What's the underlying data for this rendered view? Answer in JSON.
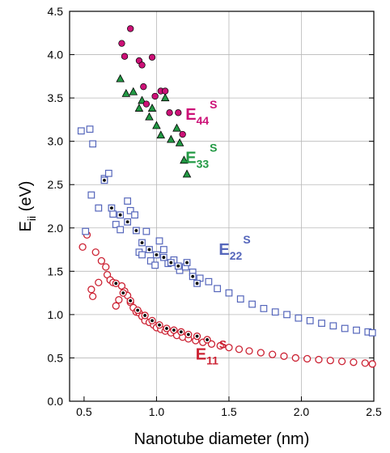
{
  "chart_data": {
    "type": "scatter",
    "title": "",
    "xlabel": "Nanotube diameter  (nm)",
    "ylabel_main": "E",
    "ylabel_sub": "ii",
    "ylabel_unit": " (eV)",
    "xlim": [
      0.4,
      2.5
    ],
    "ylim": [
      0.0,
      4.5
    ],
    "xticks": [
      0.5,
      1.0,
      1.5,
      2.0,
      2.5
    ],
    "xtick_labels": [
      "0.5",
      "1.0",
      "1.5",
      "2.0",
      "2.5"
    ],
    "yticks": [
      0.0,
      0.5,
      1.0,
      1.5,
      2.0,
      2.5,
      3.0,
      3.5,
      4.0,
      4.5
    ],
    "ytick_labels": [
      "0.0",
      "0.5",
      "1.0",
      "1.5",
      "2.0",
      "2.5",
      "3.0",
      "3.5",
      "4.0",
      "4.5"
    ],
    "grid": true,
    "series": [
      {
        "name": "E11S",
        "label_main": "E",
        "label_sub": "11",
        "label_sup": "S",
        "label_x": 1.27,
        "label_y": 0.48,
        "color": "#cc2233",
        "marker": "circle-open",
        "points": [
          [
            0.49,
            1.78
          ],
          [
            0.52,
            1.92
          ],
          [
            0.55,
            1.29
          ],
          [
            0.56,
            1.21
          ],
          [
            0.58,
            1.72
          ],
          [
            0.6,
            1.37
          ],
          [
            0.62,
            1.62
          ],
          [
            0.65,
            1.55
          ],
          [
            0.66,
            1.46
          ],
          [
            0.68,
            1.4
          ],
          [
            0.7,
            1.37
          ],
          [
            0.72,
            1.1
          ],
          [
            0.74,
            1.17
          ],
          [
            0.76,
            1.33
          ],
          [
            0.78,
            1.27
          ],
          [
            0.8,
            1.22
          ],
          [
            0.82,
            1.14
          ],
          [
            0.84,
            1.08
          ],
          [
            0.86,
            1.03
          ],
          [
            0.88,
            1.02
          ],
          [
            0.9,
            0.98
          ],
          [
            0.92,
            0.93
          ],
          [
            0.95,
            0.91
          ],
          [
            0.98,
            0.88
          ],
          [
            1.0,
            0.85
          ],
          [
            1.03,
            0.83
          ],
          [
            1.06,
            0.81
          ],
          [
            1.1,
            0.79
          ],
          [
            1.14,
            0.76
          ],
          [
            1.18,
            0.74
          ],
          [
            1.22,
            0.72
          ],
          [
            1.27,
            0.7
          ],
          [
            1.32,
            0.68
          ],
          [
            1.38,
            0.66
          ],
          [
            1.44,
            0.64
          ],
          [
            1.5,
            0.62
          ],
          [
            1.57,
            0.6
          ],
          [
            1.64,
            0.58
          ],
          [
            1.72,
            0.56
          ],
          [
            1.8,
            0.54
          ],
          [
            1.88,
            0.52
          ],
          [
            1.96,
            0.5
          ],
          [
            2.04,
            0.49
          ],
          [
            2.12,
            0.48
          ],
          [
            2.2,
            0.47
          ],
          [
            2.28,
            0.46
          ],
          [
            2.36,
            0.45
          ],
          [
            2.44,
            0.44
          ],
          [
            2.49,
            0.43
          ]
        ],
        "points_filled": [
          [
            0.72,
            1.36
          ],
          [
            0.77,
            1.25
          ],
          [
            0.82,
            1.16
          ],
          [
            0.87,
            1.05
          ],
          [
            0.92,
            0.99
          ],
          [
            0.97,
            0.93
          ],
          [
            1.02,
            0.88
          ],
          [
            1.07,
            0.84
          ],
          [
            1.12,
            0.82
          ],
          [
            1.17,
            0.8
          ],
          [
            1.22,
            0.77
          ],
          [
            1.28,
            0.75
          ],
          [
            1.35,
            0.71
          ]
        ]
      },
      {
        "name": "E22S",
        "label_main": "E",
        "label_sub": "22",
        "label_sup": "S",
        "label_x": 1.43,
        "label_y": 1.69,
        "color": "#5566bb",
        "marker": "square-open",
        "points": [
          [
            0.48,
            3.12
          ],
          [
            0.51,
            1.96
          ],
          [
            0.54,
            3.14
          ],
          [
            0.55,
            2.38
          ],
          [
            0.56,
            2.97
          ],
          [
            0.6,
            2.23
          ],
          [
            0.64,
            2.57
          ],
          [
            0.67,
            2.63
          ],
          [
            0.7,
            2.16
          ],
          [
            0.72,
            2.04
          ],
          [
            0.75,
            1.98
          ],
          [
            0.8,
            2.31
          ],
          [
            0.82,
            2.2
          ],
          [
            0.85,
            2.15
          ],
          [
            0.88,
            1.72
          ],
          [
            0.9,
            1.69
          ],
          [
            0.93,
            1.96
          ],
          [
            0.96,
            1.62
          ],
          [
            0.99,
            1.57
          ],
          [
            1.02,
            1.85
          ],
          [
            1.05,
            1.75
          ],
          [
            1.08,
            1.59
          ],
          [
            1.12,
            1.63
          ],
          [
            1.16,
            1.51
          ],
          [
            1.2,
            1.55
          ],
          [
            1.25,
            1.49
          ],
          [
            1.3,
            1.42
          ],
          [
            1.36,
            1.38
          ],
          [
            1.42,
            1.3
          ],
          [
            1.5,
            1.25
          ],
          [
            1.58,
            1.18
          ],
          [
            1.66,
            1.12
          ],
          [
            1.74,
            1.07
          ],
          [
            1.82,
            1.03
          ],
          [
            1.9,
            1.0
          ],
          [
            1.98,
            0.96
          ],
          [
            2.06,
            0.93
          ],
          [
            2.14,
            0.9
          ],
          [
            2.22,
            0.87
          ],
          [
            2.3,
            0.84
          ],
          [
            2.38,
            0.82
          ],
          [
            2.46,
            0.8
          ],
          [
            2.49,
            0.79
          ]
        ],
        "points_filled": [
          [
            0.64,
            2.55
          ],
          [
            0.69,
            2.23
          ],
          [
            0.75,
            2.15
          ],
          [
            0.8,
            2.07
          ],
          [
            0.86,
            1.97
          ],
          [
            0.9,
            1.83
          ],
          [
            0.95,
            1.75
          ],
          [
            1.0,
            1.69
          ],
          [
            1.05,
            1.66
          ],
          [
            1.1,
            1.6
          ],
          [
            1.15,
            1.56
          ],
          [
            1.21,
            1.6
          ],
          [
            1.25,
            1.44
          ],
          [
            1.28,
            1.36
          ]
        ]
      },
      {
        "name": "E33S",
        "label_main": "E",
        "label_sub": "33",
        "label_sup": "S",
        "label_x": 1.2,
        "label_y": 2.75,
        "color": "#229944",
        "marker": "triangle-filled",
        "points": [
          [
            0.75,
            3.72
          ],
          [
            0.79,
            3.55
          ],
          [
            0.84,
            3.57
          ],
          [
            0.88,
            3.38
          ],
          [
            0.9,
            3.47
          ],
          [
            0.95,
            3.28
          ],
          [
            0.97,
            3.38
          ],
          [
            1.0,
            3.18
          ],
          [
            1.03,
            3.07
          ],
          [
            1.06,
            3.5
          ],
          [
            1.1,
            3.02
          ],
          [
            1.14,
            3.15
          ],
          [
            1.16,
            2.98
          ],
          [
            1.19,
            2.78
          ],
          [
            1.21,
            2.62
          ]
        ]
      },
      {
        "name": "E44S",
        "label_main": "E",
        "label_sub": "44",
        "label_sup": "S",
        "label_x": 1.2,
        "label_y": 3.25,
        "color": "#cc1177",
        "marker": "circle-filled",
        "points": [
          [
            0.76,
            4.13
          ],
          [
            0.78,
            3.98
          ],
          [
            0.82,
            4.3
          ],
          [
            0.88,
            3.93
          ],
          [
            0.9,
            3.88
          ],
          [
            0.91,
            3.63
          ],
          [
            0.93,
            3.43
          ],
          [
            0.97,
            3.97
          ],
          [
            0.99,
            3.52
          ],
          [
            1.03,
            3.58
          ],
          [
            1.06,
            3.58
          ],
          [
            1.09,
            3.33
          ],
          [
            1.15,
            3.33
          ],
          [
            1.18,
            3.08
          ]
        ]
      }
    ]
  }
}
